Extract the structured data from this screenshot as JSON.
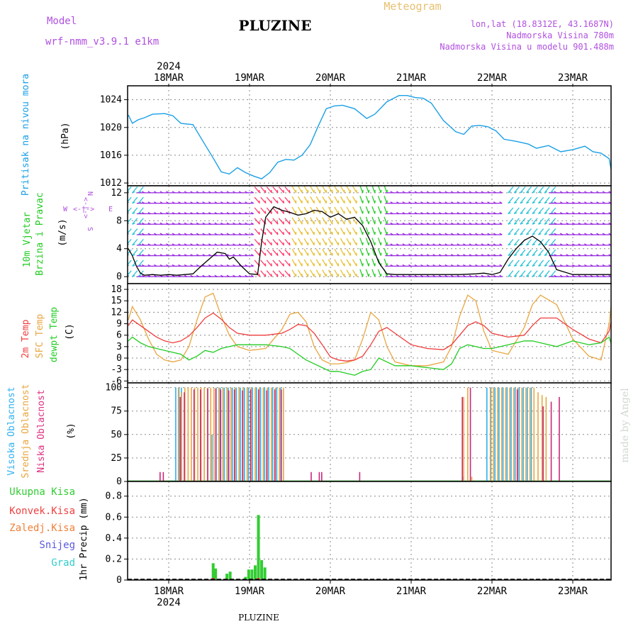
{
  "header": {
    "model_label": "Model",
    "model_name": "wrf-nmm_v3.9.1 e1km",
    "title": "PLUZINE",
    "meteogram": "Meteogram",
    "lonlat": "lon,lat (18.8312E, 43.1687N)",
    "altitude": "Nadmorska Visina 780m",
    "model_altitude": "Nadmorska Visina u modelu 901.488m",
    "footer": "PLUZINE",
    "credit": "made by Angel"
  },
  "colors": {
    "pressure": "#1aa0e6",
    "temp2m": "#f03c3c",
    "sfc_temp": "#e8a640",
    "dewpt": "#22cc22",
    "high_cloud": "#30b0f0",
    "mid_cloud": "#e8a640",
    "low_cloud": "#c8287a",
    "total_precip": "#33cc33",
    "convective": "#f04040",
    "freezing": "#f0803a",
    "snow": "#5a5ae0",
    "graupel": "#33cccc",
    "wind_speed": "#000000",
    "axis_label_purple": "#b050e0",
    "meteogram_label": "#e8c070"
  },
  "time_axis": {
    "year": "2024",
    "days": [
      "18MAR",
      "19MAR",
      "20MAR",
      "21MAR",
      "22MAR",
      "23MAR"
    ]
  },
  "panels": {
    "pressure": {
      "ylabel": "Pritisak na nivou mora",
      "unit": "(hPa)",
      "ticks": [
        "1012",
        "1016",
        "1020",
        "1024"
      ]
    },
    "wind": {
      "ylabel1": "10m Vjetar",
      "ylabel2": "Brzina i Pravac",
      "unit": "(m/s)",
      "ticks": [
        "0",
        "4",
        "8",
        "12"
      ],
      "compass": {
        "w": "W",
        "e": "E",
        "n": "N",
        "s": "S",
        "dash": "<-|->"
      }
    },
    "temp": {
      "ylabel1": "2m Temp",
      "ylabel2": "SFC Temp",
      "ylabel3": "dewpt Temp",
      "unit": "(C)",
      "ticks": [
        "-6",
        "-3",
        "0",
        "3",
        "6",
        "9",
        "12",
        "15",
        "18"
      ]
    },
    "cloud": {
      "ylabel1": "Visoka Oblacnost",
      "ylabel2": "Srednja Oblacnost",
      "ylabel3": "Niska Oblacnost",
      "unit": "(%)",
      "ticks": [
        "0",
        "25",
        "50",
        "75",
        "100"
      ]
    },
    "precip": {
      "legend": [
        "Ukupna Kisa",
        "Konvek.Kisa",
        "Zaledj.Kisa",
        "Snijeg",
        "Grad"
      ],
      "ylabel": "1hr Precip (mm)",
      "ticks": [
        "0",
        "0.2",
        "0.4",
        "0.6",
        "0.8"
      ]
    }
  },
  "chart_data": [
    {
      "type": "line",
      "title": "",
      "ylabel": "Pritisak na nivou mora (hPa)",
      "xlabel": "",
      "ylim": [
        1011.6,
        1026
      ],
      "x_unit": "days since 18MAR 00UTC",
      "series": [
        {
          "name": "Pritisak na nivou mora",
          "x": [
            -0.5,
            -0.45,
            -0.38,
            -0.3,
            -0.2,
            -0.05,
            0.05,
            0.15,
            0.3,
            0.45,
            0.55,
            0.65,
            0.75,
            0.85,
            0.95,
            1.05,
            1.15,
            1.25,
            1.35,
            1.45,
            1.55,
            1.65,
            1.75,
            1.85,
            1.95,
            2.05,
            2.15,
            2.3,
            2.45,
            2.55,
            2.7,
            2.85,
            2.95,
            3.05,
            3.15,
            3.25,
            3.4,
            3.55,
            3.65,
            3.75,
            3.85,
            3.95,
            4.05,
            4.15,
            4.3,
            4.45,
            4.55,
            4.7,
            4.85,
            5.0,
            5.15,
            5.25,
            5.35,
            5.45,
            5.5
          ],
          "y": [
            1021.8,
            1020.6,
            1021.1,
            1021.4,
            1021.9,
            1022.0,
            1021.7,
            1020.6,
            1020.4,
            1017.5,
            1015.6,
            1013.6,
            1013.3,
            1014.2,
            1013.5,
            1013.0,
            1012.6,
            1013.5,
            1015.0,
            1015.4,
            1015.3,
            1016.0,
            1017.5,
            1020.2,
            1022.7,
            1023.1,
            1023.2,
            1022.7,
            1021.3,
            1021.9,
            1023.7,
            1024.6,
            1024.6,
            1024.3,
            1024.2,
            1023.5,
            1021.0,
            1019.4,
            1019.0,
            1020.2,
            1020.3,
            1020.1,
            1019.5,
            1018.3,
            1018.0,
            1017.6,
            1017.0,
            1017.4,
            1016.5,
            1016.8,
            1017.3,
            1016.5,
            1016.3,
            1015.5,
            1012.2
          ]
        }
      ]
    },
    {
      "type": "line",
      "title": "",
      "ylabel": "10m Vjetar Brzina i Pravac (m/s)",
      "ylim": [
        -1,
        13
      ],
      "x_unit": "days since 18MAR 00UTC",
      "series": [
        {
          "name": "10m Vjetar Brzina i Pravac",
          "x": [
            -0.5,
            -0.45,
            -0.4,
            -0.35,
            -0.3,
            -0.2,
            -0.1,
            0.0,
            0.1,
            0.2,
            0.3,
            0.4,
            0.5,
            0.6,
            0.7,
            0.75,
            0.8,
            0.9,
            1.0,
            1.1,
            1.15,
            1.2,
            1.3,
            1.4,
            1.5,
            1.6,
            1.7,
            1.8,
            1.9,
            2.0,
            2.1,
            2.2,
            2.3,
            2.4,
            2.5,
            2.6,
            2.7,
            2.8,
            3.0,
            3.2,
            3.4,
            3.6,
            3.8,
            3.9,
            4.0,
            4.1,
            4.2,
            4.3,
            4.4,
            4.5,
            4.6,
            4.7,
            4.8,
            5.0,
            5.2,
            5.4,
            5.5
          ],
          "y": [
            4,
            3,
            1.5,
            0.5,
            0.2,
            0.3,
            0.2,
            0.3,
            0.2,
            0.3,
            0.4,
            1.5,
            2.5,
            3.5,
            3.3,
            2.5,
            2.8,
            1.5,
            0.4,
            0.3,
            5,
            8.5,
            10,
            9.5,
            9.2,
            8.8,
            9,
            9.5,
            9.3,
            8.5,
            9,
            8.2,
            8.5,
            7.3,
            5,
            2,
            0.4,
            0.3,
            0.3,
            0.3,
            0.3,
            0.3,
            0.4,
            0.5,
            0.3,
            0.6,
            2.5,
            4,
            5.2,
            5.8,
            5.0,
            3.5,
            1,
            0.3,
            0.3,
            0.3,
            0.3
          ]
        }
      ]
    },
    {
      "type": "line",
      "title": "",
      "ylabel": "(C)",
      "ylim": [
        -6.5,
        19.5
      ],
      "x_unit": "days since 18MAR 00UTC",
      "series": [
        {
          "name": "2m Temp",
          "x": [
            -0.5,
            -0.45,
            -0.35,
            -0.25,
            -0.15,
            -0.05,
            0.05,
            0.15,
            0.25,
            0.35,
            0.45,
            0.55,
            0.65,
            0.75,
            0.85,
            1.0,
            1.2,
            1.4,
            1.5,
            1.6,
            1.7,
            1.8,
            1.9,
            2.0,
            2.1,
            2.2,
            2.3,
            2.4,
            2.5,
            2.6,
            2.7,
            2.8,
            3.0,
            3.2,
            3.4,
            3.5,
            3.6,
            3.7,
            3.8,
            3.9,
            4.0,
            4.2,
            4.4,
            4.5,
            4.6,
            4.8,
            5.0,
            5.2,
            5.35,
            5.45,
            5.5
          ],
          "y": [
            8.5,
            10,
            8.5,
            7,
            5.5,
            4.5,
            4,
            4.5,
            5.8,
            8,
            10.5,
            11.8,
            10.2,
            8,
            6.5,
            6,
            6,
            6.5,
            7.5,
            8.8,
            8.5,
            6.5,
            3.5,
            0.3,
            -0.5,
            -0.8,
            -0.5,
            0.5,
            3.5,
            7,
            8,
            6.5,
            3.5,
            2.5,
            2.2,
            3.5,
            6,
            8.5,
            9.5,
            8.5,
            6.5,
            5.5,
            6,
            8.5,
            10.5,
            10.5,
            7.5,
            5,
            4,
            7,
            12.5
          ]
        },
        {
          "name": "SFC Temp",
          "x": [
            -0.5,
            -0.45,
            -0.35,
            -0.25,
            -0.15,
            -0.05,
            0.05,
            0.15,
            0.25,
            0.35,
            0.45,
            0.55,
            0.65,
            0.75,
            0.85,
            1.0,
            1.2,
            1.4,
            1.5,
            1.6,
            1.7,
            1.8,
            1.9,
            2.0,
            2.1,
            2.2,
            2.3,
            2.4,
            2.5,
            2.6,
            2.7,
            2.8,
            3.0,
            3.2,
            3.4,
            3.5,
            3.6,
            3.7,
            3.8,
            3.9,
            4.0,
            4.2,
            4.4,
            4.5,
            4.6,
            4.8,
            5.0,
            5.2,
            5.35,
            5.45,
            5.5
          ],
          "y": [
            10,
            13.5,
            10,
            5,
            1,
            -0.5,
            -1,
            -0.5,
            3,
            10,
            16,
            17,
            11,
            6,
            3,
            2,
            2.5,
            7.5,
            11.5,
            12,
            9.5,
            3,
            -0.5,
            -1.5,
            -1.5,
            -1.2,
            -0.5,
            5,
            12,
            10,
            3,
            -1,
            -2,
            -2,
            -1,
            3,
            11,
            16.5,
            15,
            7,
            2,
            1,
            8,
            14,
            16.5,
            14,
            5,
            0.5,
            -0.5,
            9,
            18.5
          ]
        },
        {
          "name": "dewpt Temp",
          "x": [
            -0.5,
            -0.45,
            -0.35,
            -0.25,
            -0.15,
            -0.05,
            0.05,
            0.15,
            0.25,
            0.35,
            0.45,
            0.55,
            0.65,
            0.75,
            0.85,
            1.0,
            1.2,
            1.4,
            1.5,
            1.6,
            1.7,
            1.8,
            1.9,
            2.0,
            2.1,
            2.2,
            2.3,
            2.4,
            2.5,
            2.6,
            2.7,
            2.8,
            3.0,
            3.2,
            3.4,
            3.5,
            3.6,
            3.7,
            3.8,
            3.9,
            4.0,
            4.2,
            4.4,
            4.5,
            4.6,
            4.8,
            5.0,
            5.2,
            5.35,
            5.45,
            5.5
          ],
          "y": [
            4.5,
            5.5,
            4,
            3,
            2.5,
            2,
            1.5,
            1,
            -0.5,
            0.5,
            2,
            1.5,
            2.5,
            3,
            3.5,
            3.5,
            3.5,
            3,
            2.5,
            1,
            -0.5,
            -1.5,
            -2.5,
            -3.5,
            -3.5,
            -4,
            -4.5,
            -3.5,
            -3,
            0,
            -1,
            -2,
            -2,
            -2.5,
            -3,
            -1.5,
            2.5,
            3.5,
            3,
            2.5,
            2.5,
            3.5,
            4.5,
            4.5,
            4,
            3,
            4.5,
            3.5,
            4,
            5.5,
            2
          ]
        }
      ]
    },
    {
      "type": "bar",
      "title": "",
      "ylabel": "(%)",
      "ylim": [
        0,
        105
      ],
      "x_unit": "days since 18MAR 00UTC",
      "series": [
        {
          "name": "Visoka Oblacnost",
          "x": [
            0.1,
            0.14,
            0.17,
            0.55,
            0.6,
            0.65,
            0.7,
            0.75,
            0.8,
            0.85,
            0.9,
            0.95,
            1.0,
            1.05,
            1.1,
            1.15,
            1.2,
            1.25,
            1.3,
            1.35,
            1.4,
            3.65,
            3.95,
            4.0,
            4.05,
            4.1,
            4.15,
            4.2,
            4.25,
            4.3,
            4.35,
            4.4,
            4.45,
            4.5
          ],
          "y": [
            100,
            100,
            100,
            50,
            100,
            100,
            100,
            100,
            100,
            100,
            100,
            100,
            100,
            100,
            100,
            100,
            100,
            100,
            100,
            100,
            100,
            5,
            100,
            100,
            100,
            100,
            100,
            100,
            100,
            100,
            100,
            100,
            100,
            100
          ]
        },
        {
          "name": "Srednja Oblacnost",
          "x": [
            0.12,
            0.16,
            0.2,
            0.24,
            0.28,
            0.32,
            0.36,
            0.4,
            0.44,
            0.48,
            0.52,
            0.56,
            0.62,
            0.67,
            0.72,
            0.77,
            0.82,
            0.87,
            0.92,
            0.97,
            1.02,
            1.07,
            1.12,
            1.17,
            1.22,
            1.27,
            1.32,
            1.37,
            1.42,
            3.65,
            3.7,
            3.75,
            3.98,
            4.02,
            4.07,
            4.12,
            4.17,
            4.22,
            4.27,
            4.32,
            4.37,
            4.42,
            4.47,
            4.52,
            4.57,
            4.62,
            4.67
          ],
          "y": [
            100,
            95,
            100,
            100,
            100,
            100,
            100,
            100,
            100,
            100,
            100,
            100,
            100,
            100,
            100,
            100,
            100,
            100,
            100,
            100,
            100,
            100,
            100,
            100,
            100,
            100,
            100,
            100,
            100,
            90,
            100,
            5,
            100,
            100,
            100,
            100,
            100,
            100,
            100,
            100,
            100,
            100,
            100,
            100,
            95,
            92,
            90
          ]
        },
        {
          "name": "Niska Oblacnost",
          "x": [
            -0.12,
            -0.08,
            0.13,
            0.18,
            0.3,
            0.38,
            0.47,
            0.57,
            0.63,
            0.73,
            0.8,
            0.9,
            1.0,
            1.1,
            1.2,
            1.3,
            1.38,
            1.75,
            1.85,
            1.88,
            2.35,
            3.62,
            3.72,
            4.3,
            4.62,
            4.72,
            4.82
          ],
          "y": [
            10,
            10,
            90,
            95,
            98,
            98,
            99,
            99,
            98,
            97,
            98,
            97,
            98,
            98,
            97,
            98,
            98,
            10,
            10,
            10,
            10,
            90,
            100,
            98,
            80,
            85,
            90
          ]
        }
      ]
    },
    {
      "type": "bar",
      "title": "",
      "ylabel": "1hr Precip (mm)",
      "ylim": [
        0,
        0.94
      ],
      "x_unit": "days since 18MAR 00UTC",
      "series": [
        {
          "name": "Ukupna Kisa",
          "x": [
            0.55,
            0.58,
            0.72,
            0.76,
            0.95,
            0.99,
            1.03,
            1.07,
            1.11,
            1.15,
            1.19
          ],
          "y": [
            0.16,
            0.11,
            0.06,
            0.08,
            0.03,
            0.1,
            0.1,
            0.14,
            0.62,
            0.19,
            0.12
          ]
        },
        {
          "name": "Konvek.Kisa",
          "x": [
            0.55,
            0.72,
            1.11
          ],
          "y": [
            0.02,
            0.01,
            0.02
          ]
        },
        {
          "name": "Zaledj.Kisa",
          "x": [],
          "y": []
        },
        {
          "name": "Snijeg",
          "x": [],
          "y": []
        },
        {
          "name": "Grad",
          "x": [],
          "y": []
        }
      ]
    }
  ]
}
